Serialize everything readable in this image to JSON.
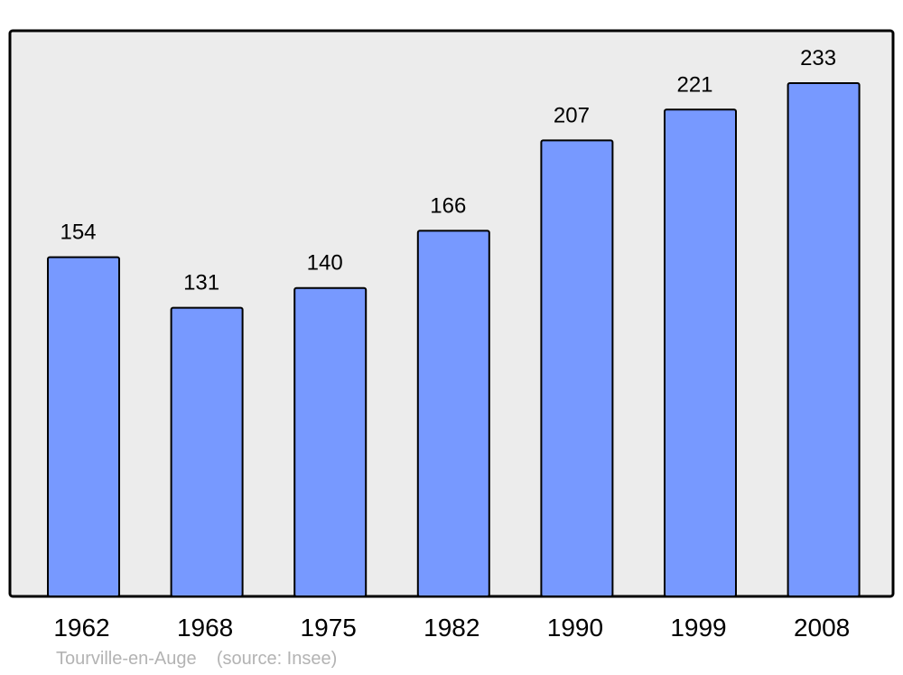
{
  "chart_data": {
    "type": "bar",
    "categories": [
      "1962",
      "1968",
      "1975",
      "1982",
      "1990",
      "1999",
      "2008"
    ],
    "values": [
      154,
      131,
      140,
      166,
      207,
      221,
      233
    ],
    "title": "",
    "xlabel": "",
    "ylabel": "",
    "ylim": [
      0,
      233
    ],
    "grid": false,
    "data_labels": true,
    "colors": {
      "bar": "#7799ff",
      "background": "#ececec",
      "border": "#000000"
    }
  },
  "footer": {
    "place": "Tourville-en-Auge",
    "source": "(source: Insee)"
  }
}
